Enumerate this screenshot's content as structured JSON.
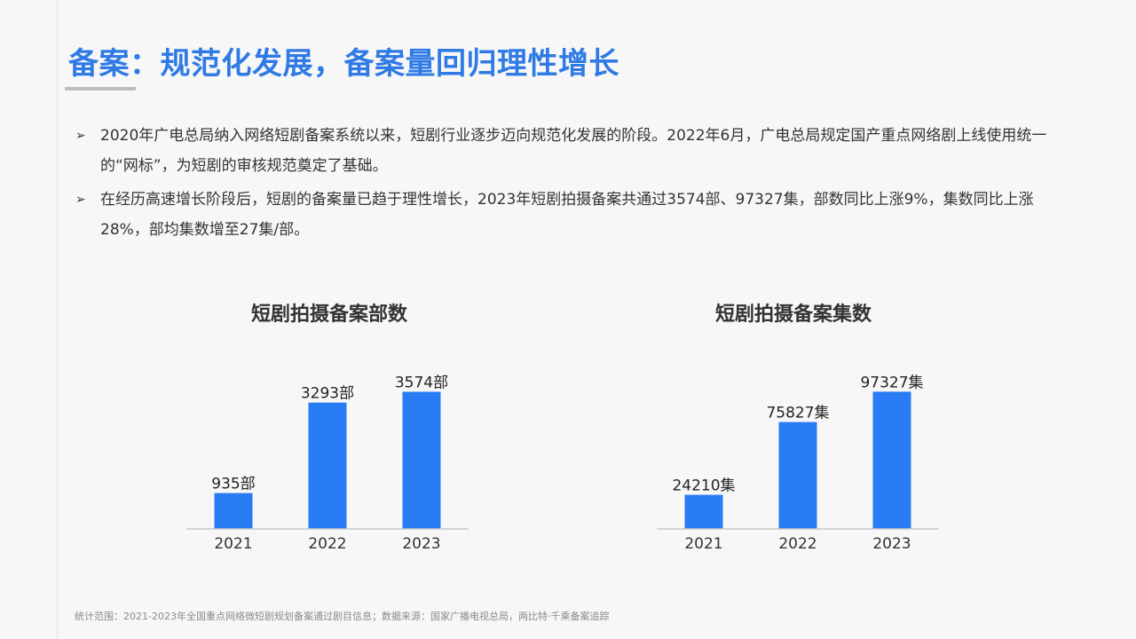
{
  "slide": {
    "title": "备案：规范化发展，备案量回归理性增长",
    "bullets": [
      "2020年广电总局纳入网络短剧备案系统以来，短剧行业逐步迈向规范化发展的阶段。2022年6月，广电总局规定国产重点网络剧上线使用统一的“网标”，为短剧的审核规范奠定了基础。",
      "在经历高速增长阶段后，短剧的备案量已趋于理性增长，2023年短剧拍摄备案共通过3574部、97327集，部数同比上涨9%，集数同比上涨28%，部均集数增至27集/部。"
    ],
    "bullet_icon": "arrow-bullet-icon",
    "footer": "统计范围：2021-2023年全国重点网络微短剧规划备案通过剧目信息；数据来源：国家广播电视总局，两比特·千乘备案追踪"
  },
  "colors": {
    "title": "#2f7ae5",
    "bar": "#2a7cf4",
    "axis": "#c8c8c8"
  },
  "chart_data": [
    {
      "type": "bar",
      "title": "短剧拍摄备案部数",
      "categories": [
        "2021",
        "2022",
        "2023"
      ],
      "values": [
        935,
        3293,
        3574
      ],
      "data_labels": [
        "935部",
        "3293部",
        "3574部"
      ],
      "ylim": [
        0,
        3700
      ],
      "grid": false,
      "legend": "none"
    },
    {
      "type": "bar",
      "title": "短剧拍摄备案集数",
      "categories": [
        "2021",
        "2022",
        "2023"
      ],
      "values": [
        24210,
        75827,
        97327
      ],
      "data_labels": [
        "24210集",
        "75827集",
        "97327集"
      ],
      "ylim": [
        0,
        100700
      ],
      "grid": false,
      "legend": "none"
    }
  ]
}
